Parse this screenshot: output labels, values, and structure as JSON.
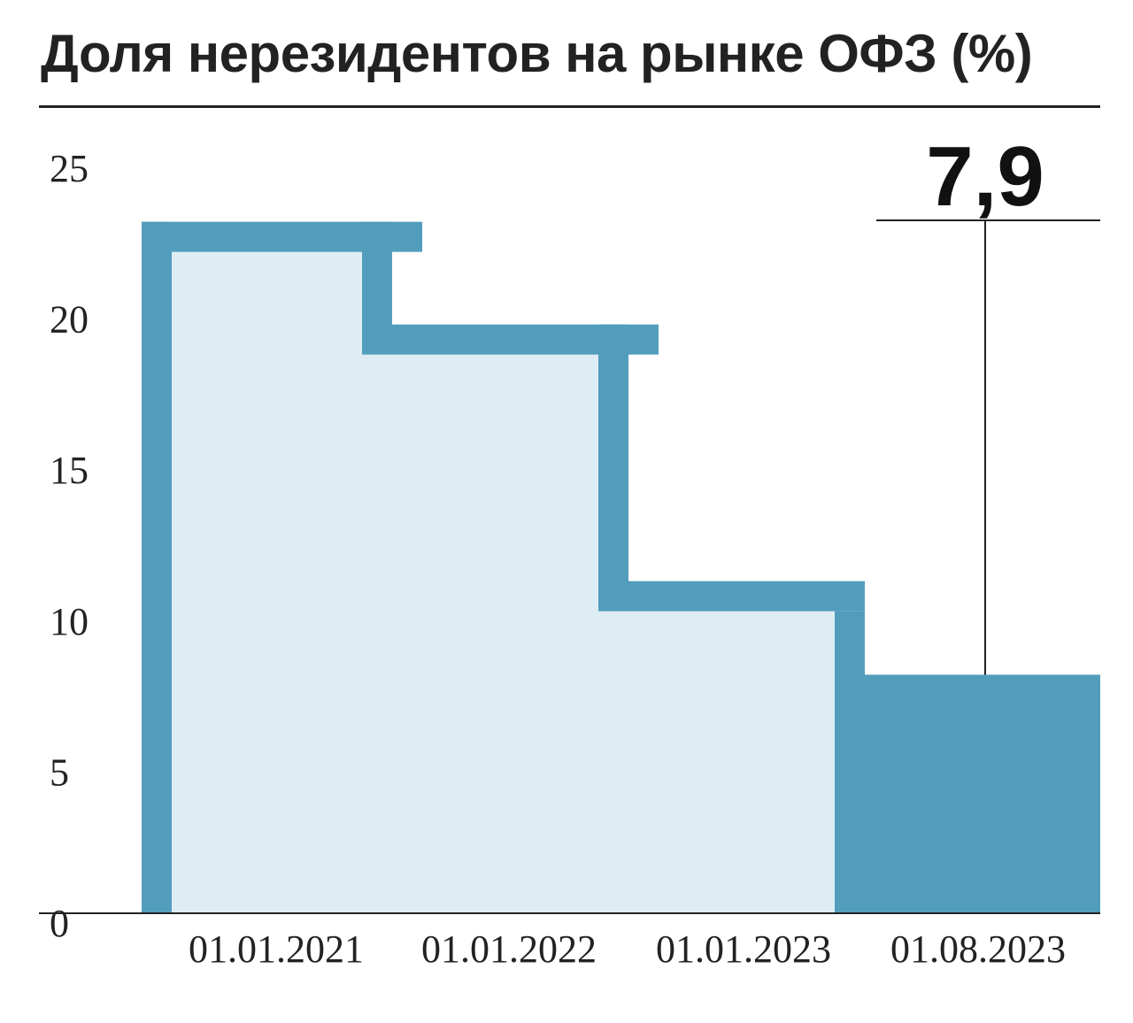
{
  "chart_data": {
    "type": "bar",
    "title": "Доля нерезидентов на рынке ОФЗ (%)",
    "categories": [
      "01.01.2021",
      "01.01.2022",
      "01.01.2023",
      "01.08.2023"
    ],
    "values": [
      22.9,
      19.5,
      11.0,
      7.9
    ],
    "ylim": [
      0,
      25
    ],
    "yticks": [
      "0",
      "5",
      "10",
      "15",
      "20",
      "25"
    ],
    "xlabel": "",
    "ylabel": "",
    "grid": false,
    "callout": {
      "label": "7,9",
      "category": "01.08.2023"
    },
    "colors": {
      "outline": "#529dbc",
      "fill_light": "#deedf4",
      "fill_last": "#529dbc",
      "text": "#222222"
    }
  }
}
